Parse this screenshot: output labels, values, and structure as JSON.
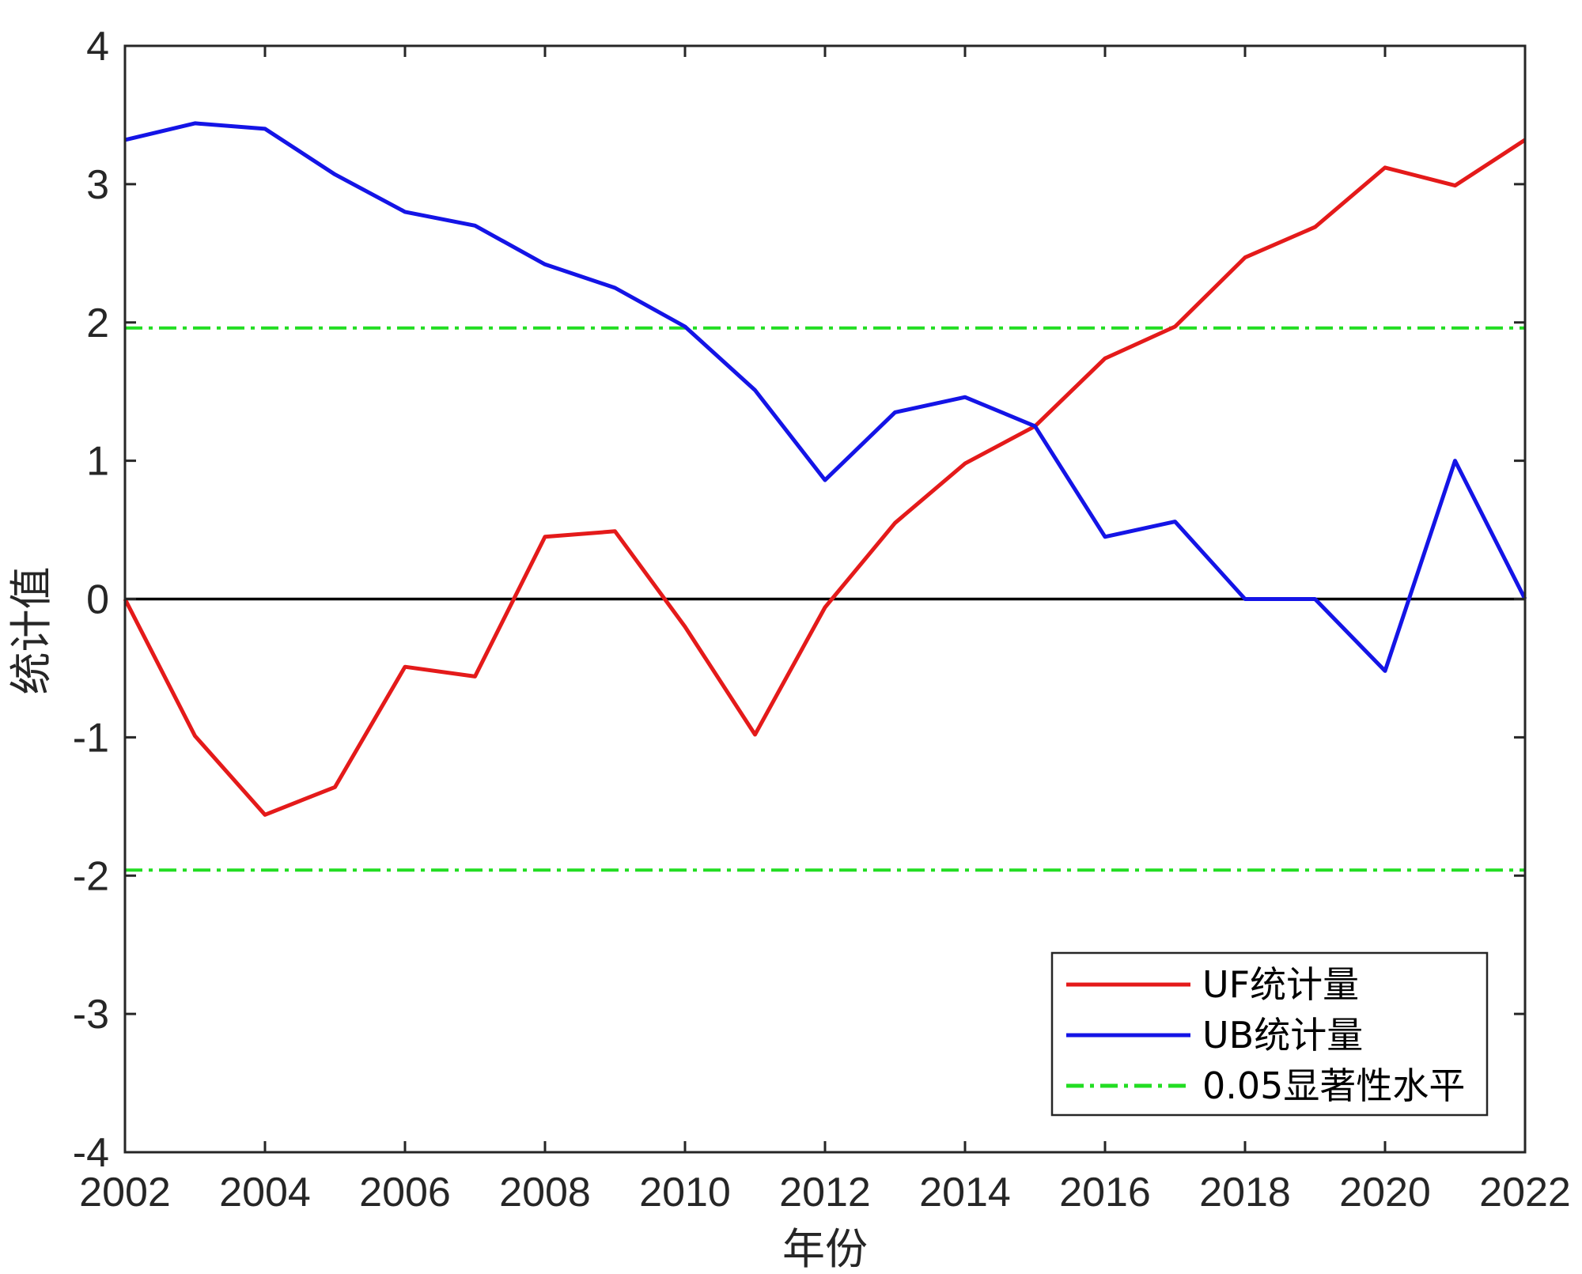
{
  "chart_data": {
    "type": "line",
    "xlabel": "年份",
    "ylabel": "统计值",
    "xlim": [
      2002,
      2022
    ],
    "ylim": [
      -4,
      4
    ],
    "xticks": [
      2002,
      2004,
      2006,
      2008,
      2010,
      2012,
      2014,
      2016,
      2018,
      2020,
      2022
    ],
    "yticks": [
      -4,
      -3,
      -2,
      -1,
      0,
      1,
      2,
      3,
      4
    ],
    "x": [
      2002,
      2003,
      2004,
      2005,
      2006,
      2007,
      2008,
      2009,
      2010,
      2011,
      2012,
      2013,
      2014,
      2015,
      2016,
      2017,
      2018,
      2019,
      2020,
      2021,
      2022
    ],
    "series": [
      {
        "name": "UF统计量",
        "color": "#e41a1a",
        "style": "solid",
        "values": [
          0,
          -0.99,
          -1.56,
          -1.36,
          -0.49,
          -0.56,
          0.45,
          0.49,
          -0.2,
          -0.98,
          -0.06,
          0.55,
          0.98,
          1.25,
          1.74,
          1.97,
          2.47,
          2.69,
          3.12,
          2.99,
          3.32
        ]
      },
      {
        "name": "UB统计量",
        "color": "#1414e6",
        "style": "solid",
        "values": [
          3.32,
          3.44,
          3.4,
          3.07,
          2.8,
          2.7,
          2.42,
          2.25,
          1.97,
          1.51,
          0.86,
          1.35,
          1.46,
          1.25,
          0.45,
          0.56,
          0,
          0,
          -0.52,
          1.0,
          0
        ]
      }
    ],
    "reference_lines": [
      {
        "name": "0.05显著性水平",
        "y": 1.96,
        "color": "#22dd22",
        "style": "dashdot",
        "in_legend": true
      },
      {
        "name": "0.05显著性水平",
        "y": -1.96,
        "color": "#22dd22",
        "style": "dashdot",
        "in_legend": false
      },
      {
        "name": "",
        "y": 0,
        "color": "#000000",
        "style": "solid",
        "in_legend": false
      }
    ],
    "legend": {
      "position": "bottom-right",
      "entries": [
        {
          "label": "UF统计量",
          "color": "#e41a1a",
          "style": "solid"
        },
        {
          "label": "UB统计量",
          "color": "#1414e6",
          "style": "solid"
        },
        {
          "label": "0.05显著性水平",
          "color": "#22dd22",
          "style": "dashdot"
        }
      ]
    },
    "grid": false
  }
}
